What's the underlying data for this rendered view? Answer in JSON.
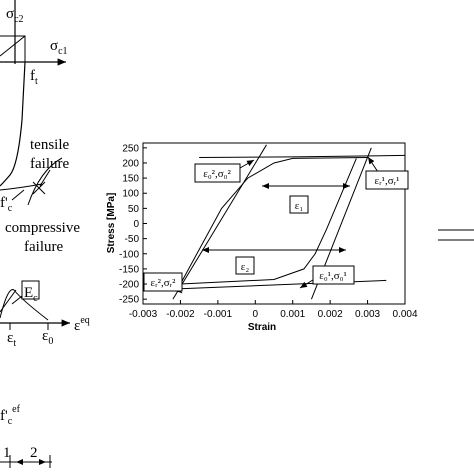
{
  "left_panel": {
    "labels": [
      {
        "base": "σ",
        "sub": "c2"
      },
      {
        "base": "σ",
        "sub": "c1"
      },
      {
        "base": "f",
        "sub": "t"
      },
      {
        "base": "tensile"
      },
      {
        "base": "failure"
      },
      {
        "base": "f'",
        "sub": "c"
      },
      {
        "base": "compressive"
      },
      {
        "base": "failure"
      },
      {
        "base": "E",
        "sub": "c"
      },
      {
        "base": "ε",
        "sub": "t"
      },
      {
        "base": "ε",
        "sub": "0"
      },
      {
        "base": "ε",
        "sup": "eq"
      },
      {
        "base": "f'",
        "sub": "c",
        "sup": "ef"
      },
      {
        "base": "1"
      },
      {
        "base": "2"
      }
    ]
  },
  "chart_data": {
    "type": "line",
    "x_label": "Strain",
    "y_label": "Stress [MPa]",
    "xlim": [
      -0.003,
      0.004
    ],
    "xticks": [
      -0.003,
      -0.002,
      -0.001,
      0,
      0.001,
      0.002,
      0.003,
      0.004
    ],
    "ylim": [
      -266,
      266
    ],
    "yticks": [
      250,
      200,
      150,
      100,
      50,
      0,
      -50,
      -100,
      -150,
      -200,
      -250
    ],
    "series": [
      {
        "color": "#000000",
        "x": [
          -0.0015,
          0.001,
          0.004
        ],
        "values": [
          218,
          220,
          225
        ]
      },
      {
        "color": "#000000",
        "x": [
          -0.0025,
          0.0035
        ],
        "values": [
          -218,
          -188
        ]
      },
      {
        "color": "#000000",
        "x": [
          -0.0022,
          0.0003
        ],
        "values": [
          -250,
          260
        ]
      },
      {
        "color": "#000000",
        "x": [
          0.0015,
          0.0031
        ],
        "values": [
          -250,
          250
        ]
      },
      {
        "color": "#000000",
        "x": [
          -0.002,
          -0.0009,
          -0.0002,
          0.0005,
          0.001,
          0.003
        ],
        "values": [
          -200,
          50,
          150,
          200,
          215,
          218
        ]
      },
      {
        "color": "#000000",
        "x": [
          0.0027,
          0.0019,
          0.0016,
          0.0013,
          0.0005,
          -0.002
        ],
        "values": [
          215,
          -20,
          -100,
          -150,
          -185,
          -200
        ]
      }
    ],
    "annotations": [
      "ε₀²,σ₀²",
      "εᵣ¹,σᵣ¹",
      "ε₁",
      "ε₂",
      "εᵣ²,σᵣ²",
      "ε₀¹,σ₀¹"
    ]
  }
}
